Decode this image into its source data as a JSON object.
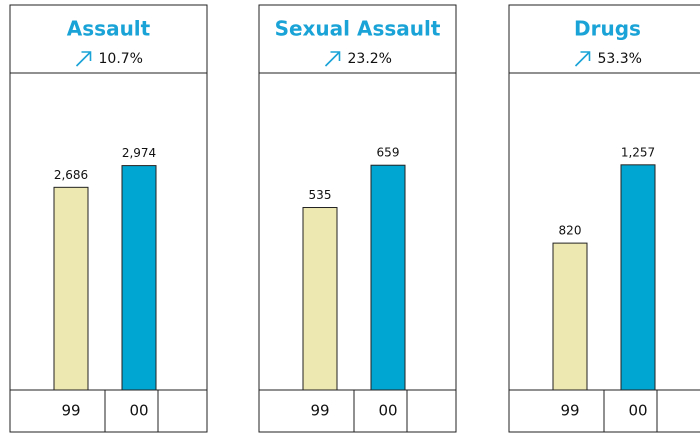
{
  "chart_data": [
    {
      "type": "bar",
      "title": "Assault",
      "change": {
        "value": 10.7,
        "label": "10.7%"
      },
      "categories": [
        "99",
        "00"
      ],
      "values": [
        2686,
        2974
      ],
      "value_labels": [
        "2,686",
        "2,974"
      ],
      "colors": [
        "#ede7b1",
        "#00a6d2"
      ],
      "ylim": [
        0,
        3300
      ]
    },
    {
      "type": "bar",
      "title": "Sexual Assault",
      "change": {
        "value": 23.2,
        "label": "23.2%"
      },
      "categories": [
        "99",
        "00"
      ],
      "values": [
        535,
        659
      ],
      "value_labels": [
        "535",
        "659"
      ],
      "colors": [
        "#ede7b1",
        "#00a6d2"
      ],
      "ylim": [
        0,
        730
      ]
    },
    {
      "type": "bar",
      "title": "Drugs",
      "change": {
        "value": 53.3,
        "label": "53.3%"
      },
      "categories": [
        "99",
        "00"
      ],
      "values": [
        820,
        1257
      ],
      "value_labels": [
        "820",
        "1,257"
      ],
      "colors": [
        "#ede7b1",
        "#00a6d2"
      ],
      "ylim": [
        0,
        1390
      ]
    }
  ]
}
